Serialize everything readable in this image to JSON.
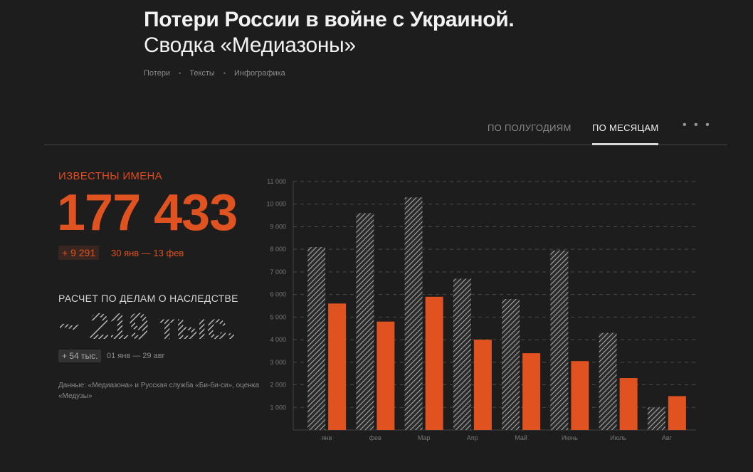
{
  "header": {
    "title": "Потери России в войне с Украиной.",
    "subtitle": "Сводка «Медиазоны»"
  },
  "breadcrumbs": [
    "Потери",
    "Тексты",
    "Инфографика"
  ],
  "tabs": {
    "half_years": "ПО ПОЛУГОДИЯМ",
    "months": "ПО МЕСЯЦАМ",
    "more": "• • •"
  },
  "known": {
    "label": "ИЗВЕСТНЫ ИМЕНА",
    "value": "177 433",
    "delta": "+ 9 291",
    "period": "30 янв — 13 фев"
  },
  "estimate": {
    "label": "РАСЧЕТ ПО ДЕЛАМ О НАСЛЕДСТВЕ",
    "value": "~ 219 тыс.",
    "delta": "+ 54 тыс.",
    "period": "01 янв — 29 авг"
  },
  "source": "Данные: «Медиазона» и Русская служба «Би-би-си», оценка «Медузы»",
  "colors": {
    "accent": "#e0521f",
    "hatch": "#9a9a9a",
    "background": "#1d1d1d"
  },
  "chart_data": {
    "type": "bar",
    "categories": [
      "янв",
      "фев",
      "Мар",
      "Апр",
      "Май",
      "Июнь",
      "Июль",
      "Авг"
    ],
    "ylim": [
      0,
      11000
    ],
    "yticks": [
      1000,
      2000,
      3000,
      4000,
      5000,
      6000,
      7000,
      8000,
      9000,
      10000,
      11000
    ],
    "ytick_labels": [
      "1 000",
      "2 000",
      "3 000",
      "4 000",
      "5 000",
      "6 000",
      "7 000",
      "8 000",
      "9 000",
      "10 000",
      "11 000"
    ],
    "grid": true,
    "series": [
      {
        "style": "hatched",
        "values": [
          8100,
          9600,
          10300,
          6700,
          5800,
          7950,
          4300,
          1000
        ]
      },
      {
        "style": "solid",
        "values": [
          5600,
          4800,
          5900,
          4000,
          3400,
          3050,
          2300,
          1500
        ]
      }
    ]
  }
}
